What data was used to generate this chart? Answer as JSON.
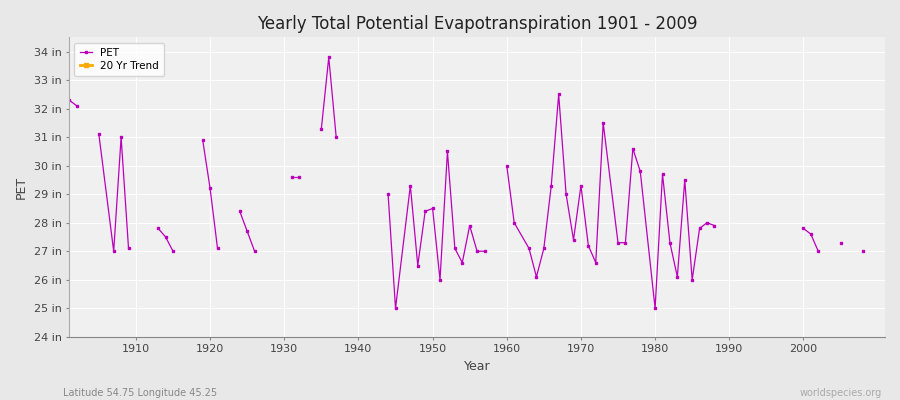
{
  "title": "Yearly Total Potential Evapotranspiration 1901 - 2009",
  "xlabel": "Year",
  "ylabel": "PET",
  "footnote_left": "Latitude 54.75 Longitude 45.25",
  "footnote_right": "worldspecies.org",
  "ylim": [
    24,
    34.5
  ],
  "ytick_labels": [
    "24 in",
    "25 in",
    "26 in",
    "27 in",
    "28 in",
    "29 in",
    "30 in",
    "31 in",
    "32 in",
    "33 in",
    "34 in"
  ],
  "ytick_values": [
    24,
    25,
    26,
    27,
    28,
    29,
    30,
    31,
    32,
    33,
    34
  ],
  "line_color": "#bb00bb",
  "trend_color": "#ffaa00",
  "background_color": "#e8e8e8",
  "plot_bg_color": "#f0f0f0",
  "grid_color": "#ffffff",
  "xtick_positions": [
    1910,
    1920,
    1930,
    1940,
    1950,
    1960,
    1970,
    1980,
    1990,
    2000
  ],
  "years": [
    1901,
    1902,
    1905,
    1907,
    1908,
    1909,
    1913,
    1914,
    1915,
    1919,
    1920,
    1921,
    1924,
    1925,
    1926,
    1931,
    1932,
    1935,
    1936,
    1937,
    1944,
    1945,
    1947,
    1948,
    1949,
    1950,
    1951,
    1952,
    1953,
    1954,
    1955,
    1956,
    1957,
    1960,
    1961,
    1963,
    1964,
    1965,
    1966,
    1967,
    1968,
    1969,
    1970,
    1971,
    1972,
    1973,
    1975,
    1976,
    1977,
    1978,
    1980,
    1981,
    1982,
    1983,
    1984,
    1985,
    1986,
    1987,
    1988,
    2000,
    2001,
    2002,
    2005,
    2008
  ],
  "values": [
    32.3,
    32.1,
    31.1,
    27.0,
    31.0,
    27.1,
    27.8,
    27.5,
    27.0,
    30.9,
    29.2,
    27.1,
    28.4,
    27.7,
    27.0,
    29.6,
    29.6,
    31.3,
    33.8,
    31.0,
    29.0,
    25.0,
    29.3,
    26.5,
    28.4,
    28.5,
    26.0,
    30.5,
    27.1,
    26.6,
    27.9,
    27.0,
    27.0,
    30.0,
    28.0,
    27.1,
    26.1,
    27.1,
    29.3,
    32.5,
    29.0,
    27.4,
    29.3,
    27.2,
    26.6,
    31.5,
    27.3,
    27.3,
    30.6,
    29.8,
    25.0,
    29.7,
    27.3,
    26.1,
    29.5,
    26.0,
    27.8,
    28.0,
    27.9,
    27.8,
    27.6,
    27.0,
    27.3,
    27.0
  ]
}
